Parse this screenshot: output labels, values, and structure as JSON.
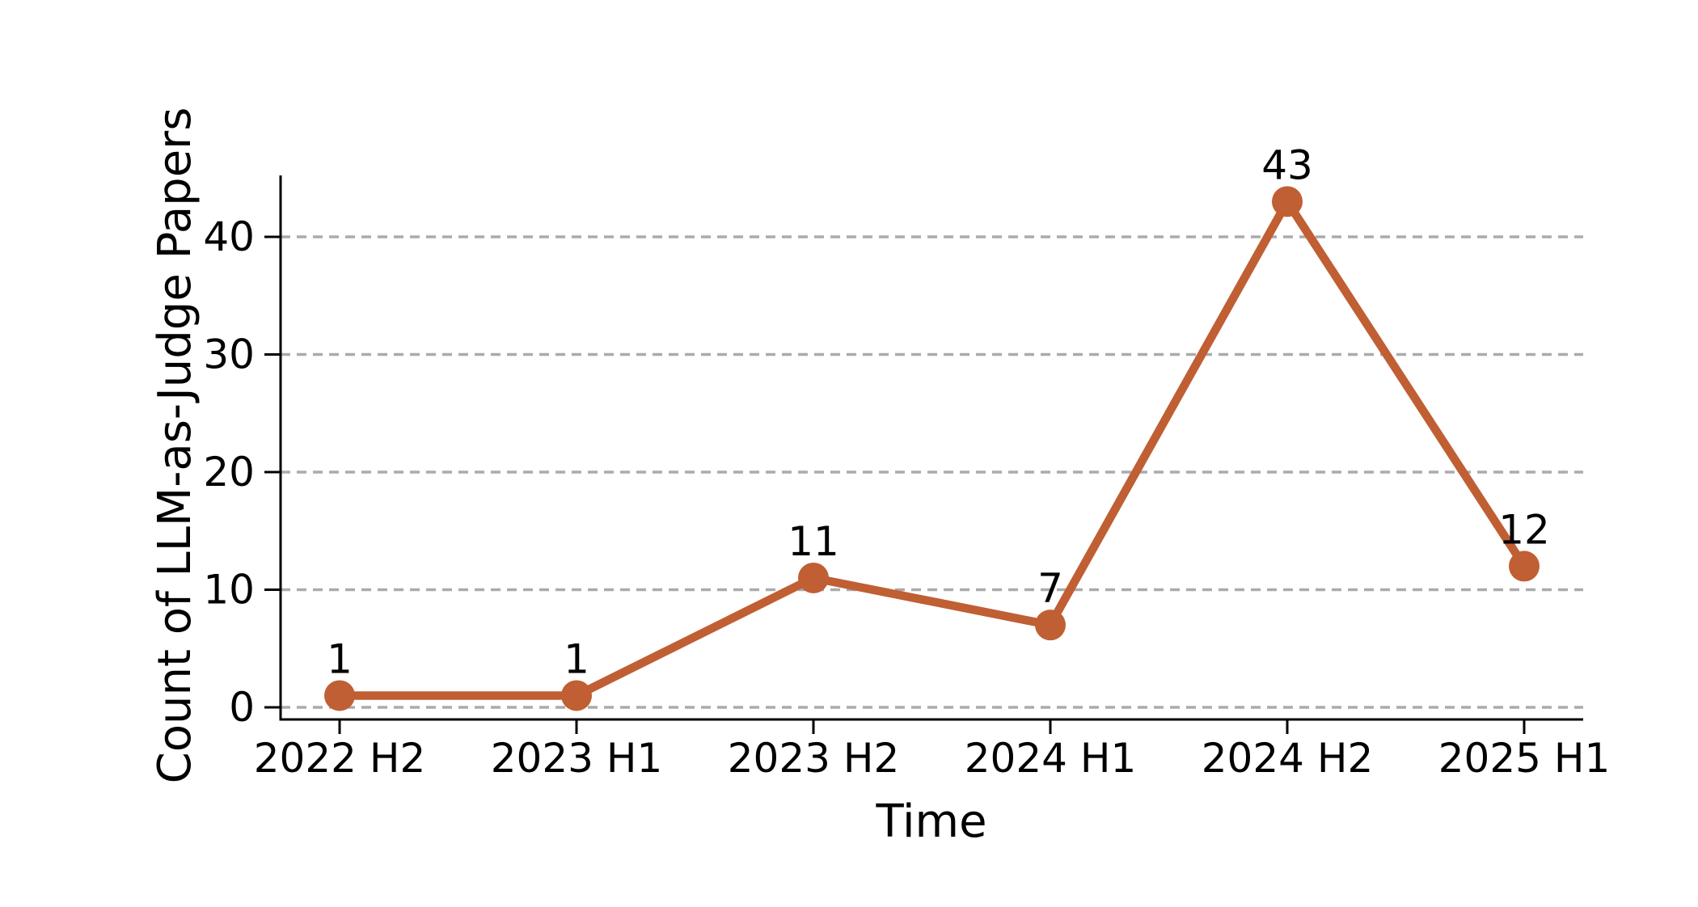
{
  "chart_data": {
    "type": "line",
    "title": "",
    "xlabel": "Time",
    "ylabel": "Count of LLM-as-Judge Papers",
    "categories": [
      "2022 H2",
      "2023 H1",
      "2023 H2",
      "2024 H1",
      "2024 H2",
      "2025 H1"
    ],
    "series": [
      {
        "name": "Count of LLM-as-Judge Papers",
        "values": [
          1,
          1,
          11,
          7,
          43,
          12
        ]
      }
    ],
    "point_labels": [
      "1",
      "1",
      "11",
      "7",
      "43",
      "12"
    ],
    "yticks": [
      0,
      10,
      20,
      30,
      40
    ],
    "ylim": [
      0,
      45
    ],
    "grid": "horizontal-dashed",
    "legend": "none",
    "colors": {
      "line": "#C05F33",
      "marker": "#C05F33",
      "grid": "#ABABAB",
      "spine": "#000000",
      "text": "#000000",
      "background": "#FFFFFF"
    }
  }
}
